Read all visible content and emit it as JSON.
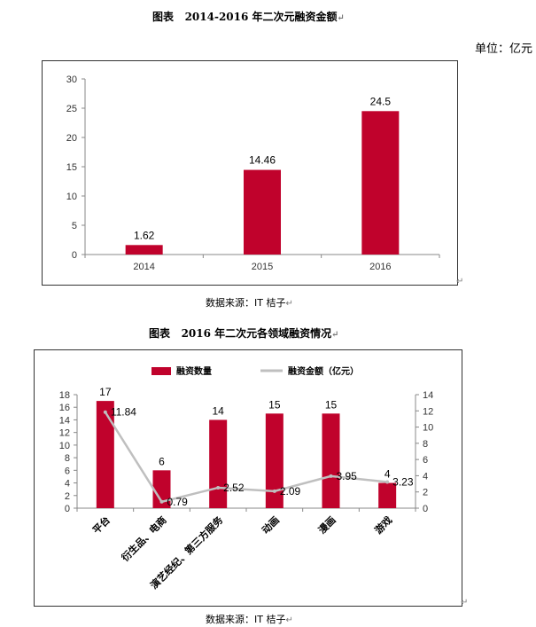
{
  "chart_data": [
    {
      "type": "bar",
      "title": "图表 2014-2016 年二次元融资金额",
      "title_label": "图表",
      "title_text": "2014-2016 年二次元融资金额",
      "unit": "单位：亿元",
      "source": "数据来源：IT 桔子",
      "categories": [
        "2014",
        "2015",
        "2016"
      ],
      "values": [
        1.62,
        14.46,
        24.5
      ],
      "value_labels": [
        "1.62",
        "14.46",
        "24.5"
      ],
      "ylim": [
        0,
        30
      ],
      "yticks": [
        "0",
        "5",
        "10",
        "15",
        "20",
        "25",
        "30"
      ],
      "grid": false,
      "bar_color": "#C0022C"
    },
    {
      "type": "bar+line",
      "title": "图表 2016 年二次元各领域融资情况",
      "title_label": "图表",
      "title_text": "2016 年二次元各领域融资情况",
      "source": "数据来源：IT 桔子",
      "categories": [
        "平台",
        "衍生品、电商",
        "演艺经纪、第三方服务",
        "动画",
        "漫画",
        "游戏"
      ],
      "legend_position": "top",
      "series": [
        {
          "name": "融资数量",
          "type": "bar",
          "axis": "left",
          "values": [
            17,
            6,
            14,
            15,
            15,
            4
          ],
          "labels": [
            "17",
            "6",
            "14",
            "15",
            "15",
            "4"
          ],
          "color": "#C0022C"
        },
        {
          "name": "融资金额（亿元）",
          "type": "line",
          "axis": "right",
          "values": [
            11.84,
            0.79,
            2.52,
            2.09,
            3.95,
            3.23
          ],
          "labels": [
            "11.84",
            "0.79",
            "2.52",
            "2.09",
            "3.95",
            "3.23"
          ],
          "color": "#BFBFBF"
        }
      ],
      "ylim_left": [
        0,
        18
      ],
      "yticks_left": [
        "0",
        "2",
        "4",
        "6",
        "8",
        "10",
        "12",
        "14",
        "16",
        "18"
      ],
      "ylim_right": [
        0,
        14
      ],
      "yticks_right": [
        "0",
        "2",
        "4",
        "6",
        "8",
        "10",
        "12",
        "14"
      ],
      "grid": false
    }
  ],
  "marks": {
    "para": "↵"
  }
}
